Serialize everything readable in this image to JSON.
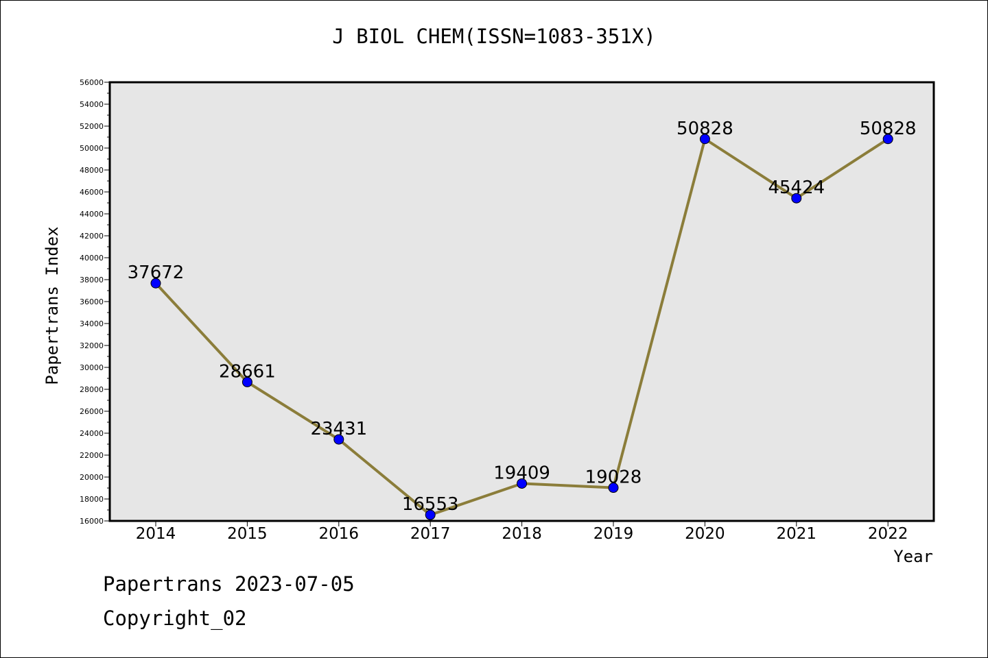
{
  "chart_data": {
    "type": "line",
    "title": "J BIOL CHEM(ISSN=1083-351X)",
    "xlabel": "Year",
    "ylabel": "Papertrans Index",
    "categories": [
      "2014",
      "2015",
      "2016",
      "2017",
      "2018",
      "2019",
      "2020",
      "2021",
      "2022"
    ],
    "series": [
      {
        "values": [
          37672,
          28661,
          23431,
          16553,
          19409,
          19028,
          50828,
          45424,
          50828
        ]
      }
    ],
    "data_labels": [
      "37672",
      "28661",
      "23431",
      "16553",
      "19409",
      "19028",
      "50828",
      "45424",
      "50828"
    ],
    "yticks": [
      "16000",
      "18000",
      "20000",
      "22000",
      "24000",
      "26000",
      "28000",
      "30000",
      "32000",
      "34000",
      "36000",
      "38000",
      "40000",
      "42000",
      "44000",
      "46000",
      "48000",
      "50000",
      "52000",
      "54000",
      "56000"
    ],
    "ylim": [
      16000,
      56000
    ],
    "grid": false,
    "line_color": "#8b7d3a",
    "marker_color": "#0000ff",
    "plot_background": "#e6e6e6"
  },
  "footer": {
    "date_text": "Papertrans 2023-07-05",
    "copyright_text": "Copyright_02"
  }
}
